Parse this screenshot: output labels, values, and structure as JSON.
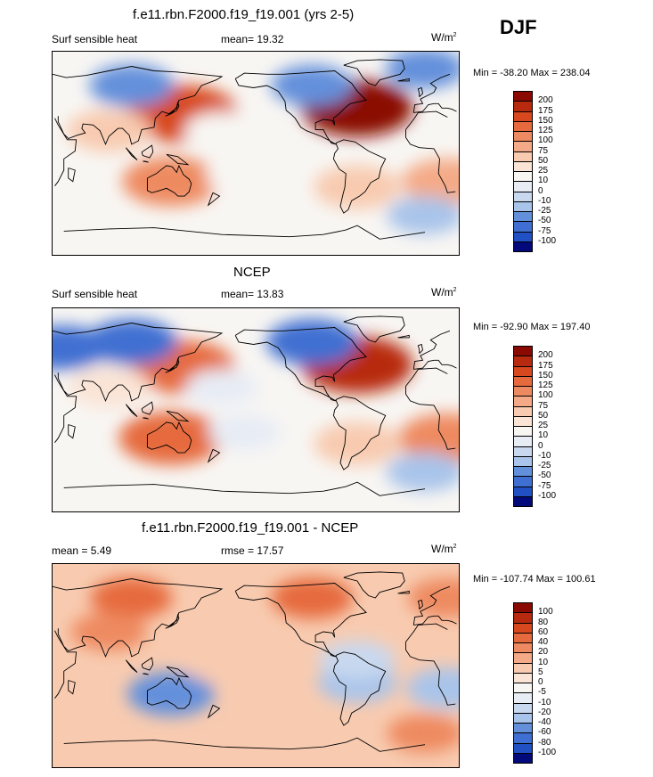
{
  "season": "DJF",
  "panels": [
    {
      "title": "f.e11.rbn.F2000.f19_f19.001 (yrs 2-5)",
      "left_label": "Surf sensible heat",
      "center_label": "mean=  19.32",
      "units": "W/m",
      "units_sup": "2",
      "minmax": "Min = -38.20 Max = 238.04"
    },
    {
      "title": "NCEP",
      "left_label": "Surf sensible heat",
      "center_label": "mean=  13.83",
      "units": "W/m",
      "units_sup": "2",
      "minmax": "Min = -92.90 Max = 197.40"
    },
    {
      "title": "f.e11.rbn.F2000.f19_f19.001 - NCEP",
      "left_label": "mean =   5.49",
      "center_label": "rmse =  17.57",
      "units": "W/m",
      "units_sup": "2",
      "minmax": "Min = -107.74 Max = 100.61"
    }
  ],
  "colors": {
    "levels_scale": [
      "#f8f6f3",
      "#e7ecf5",
      "#c8d8ef",
      "#a9c4ea",
      "#86aae3",
      "#6390db",
      "#3f6fd2",
      "#214fc4",
      "#0c31a9",
      "#02097a",
      "#fae4d6",
      "#f8cbb0",
      "#f4aa87",
      "#ee8a61",
      "#e66a3d",
      "#d8481f",
      "#b82a10",
      "#8a0a02"
    ]
  },
  "chart_data": [
    {
      "type": "heatmap",
      "title": "f.e11.rbn.F2000.f19_f19.001 (yrs 2-5)",
      "variable": "Surf sensible heat",
      "units": "W/m2",
      "mean": 19.32,
      "min": -38.2,
      "max": 238.04,
      "colorbar_levels": [
        "200",
        "175",
        "150",
        "125",
        "100",
        "75",
        "50",
        "25",
        "10",
        "0",
        "-10",
        "-25",
        "-50",
        "-75",
        "-100"
      ],
      "colorbar_colors": [
        "#8a0a02",
        "#b82a10",
        "#d8481f",
        "#e66a3d",
        "#ee8a61",
        "#f4aa87",
        "#f8cbb0",
        "#fae4d6",
        "#f8f6f3",
        "#e7ecf5",
        "#c8d8ef",
        "#a9c4ea",
        "#6390db",
        "#3f6fd2",
        "#214fc4",
        "#02097a"
      ],
      "features": [
        {
          "lon": -60,
          "lat": 40,
          "value": 200
        },
        {
          "lon": 145,
          "lat": 35,
          "value": 150
        },
        {
          "lon": 20,
          "lat": -25,
          "value": 75
        },
        {
          "lon": 135,
          "lat": -25,
          "value": 100
        },
        {
          "lon": -60,
          "lat": -30,
          "value": 60
        },
        {
          "lon": 80,
          "lat": 20,
          "value": 50
        },
        {
          "lon": 100,
          "lat": 60,
          "value": -50
        },
        {
          "lon": -100,
          "lat": 60,
          "value": -40
        },
        {
          "lon": 0,
          "lat": 75,
          "value": -30
        },
        {
          "lon": 180,
          "lat": 20,
          "value": 15
        },
        {
          "lon": -160,
          "lat": -20,
          "value": 20
        },
        {
          "lon": 0,
          "lat": -55,
          "value": -20
        }
      ]
    },
    {
      "type": "heatmap",
      "title": "NCEP",
      "variable": "Surf sensible heat",
      "units": "W/m2",
      "mean": 13.83,
      "min": -92.9,
      "max": 197.4,
      "colorbar_levels": [
        "200",
        "175",
        "150",
        "125",
        "100",
        "75",
        "50",
        "25",
        "10",
        "0",
        "-10",
        "-25",
        "-50",
        "-75",
        "-100"
      ],
      "colorbar_colors": [
        "#8a0a02",
        "#b82a10",
        "#d8481f",
        "#e66a3d",
        "#ee8a61",
        "#f4aa87",
        "#f8cbb0",
        "#fae4d6",
        "#f8f6f3",
        "#e7ecf5",
        "#c8d8ef",
        "#a9c4ea",
        "#6390db",
        "#3f6fd2",
        "#214fc4",
        "#02097a"
      ],
      "features": [
        {
          "lon": -60,
          "lat": 40,
          "value": 175
        },
        {
          "lon": 145,
          "lat": 38,
          "value": 125
        },
        {
          "lon": 20,
          "lat": -25,
          "value": 100
        },
        {
          "lon": 135,
          "lat": -25,
          "value": 125
        },
        {
          "lon": -60,
          "lat": -30,
          "value": 60
        },
        {
          "lon": 80,
          "lat": 20,
          "value": 40
        },
        {
          "lon": 100,
          "lat": 60,
          "value": -75
        },
        {
          "lon": -100,
          "lat": 60,
          "value": -75
        },
        {
          "lon": 40,
          "lat": 55,
          "value": -60
        },
        {
          "lon": 180,
          "lat": 20,
          "value": 5
        },
        {
          "lon": -160,
          "lat": -20,
          "value": 5
        },
        {
          "lon": 0,
          "lat": -55,
          "value": -25
        }
      ]
    },
    {
      "type": "heatmap",
      "title": "f.e11.rbn.F2000.f19_f19.001 - NCEP",
      "units": "W/m2",
      "mean": 5.49,
      "rmse": 17.57,
      "min": -107.74,
      "max": 100.61,
      "colorbar_levels": [
        "100",
        "80",
        "60",
        "40",
        "20",
        "10",
        "5",
        "0",
        "-5",
        "-10",
        "-20",
        "-40",
        "-60",
        "-80",
        "-100"
      ],
      "colorbar_colors": [
        "#8a0a02",
        "#b82a10",
        "#d8481f",
        "#e66a3d",
        "#ee8a61",
        "#f4aa87",
        "#f8cbb0",
        "#fae4d6",
        "#f8f6f3",
        "#e7ecf5",
        "#c8d8ef",
        "#a9c4ea",
        "#6390db",
        "#3f6fd2",
        "#214fc4",
        "#02097a"
      ],
      "features": [
        {
          "lon": 100,
          "lat": 60,
          "value": 40
        },
        {
          "lon": -100,
          "lat": 60,
          "value": 40
        },
        {
          "lon": 20,
          "lat": 60,
          "value": 30
        },
        {
          "lon": 20,
          "lat": -20,
          "value": -40
        },
        {
          "lon": 135,
          "lat": -25,
          "value": -60
        },
        {
          "lon": -60,
          "lat": -15,
          "value": -30
        },
        {
          "lon": -180,
          "lat": 0,
          "value": 5
        },
        {
          "lon": -60,
          "lat": 5,
          "value": -20
        },
        {
          "lon": 80,
          "lat": 30,
          "value": 20
        },
        {
          "lon": 0,
          "lat": -60,
          "value": 20
        }
      ]
    }
  ]
}
